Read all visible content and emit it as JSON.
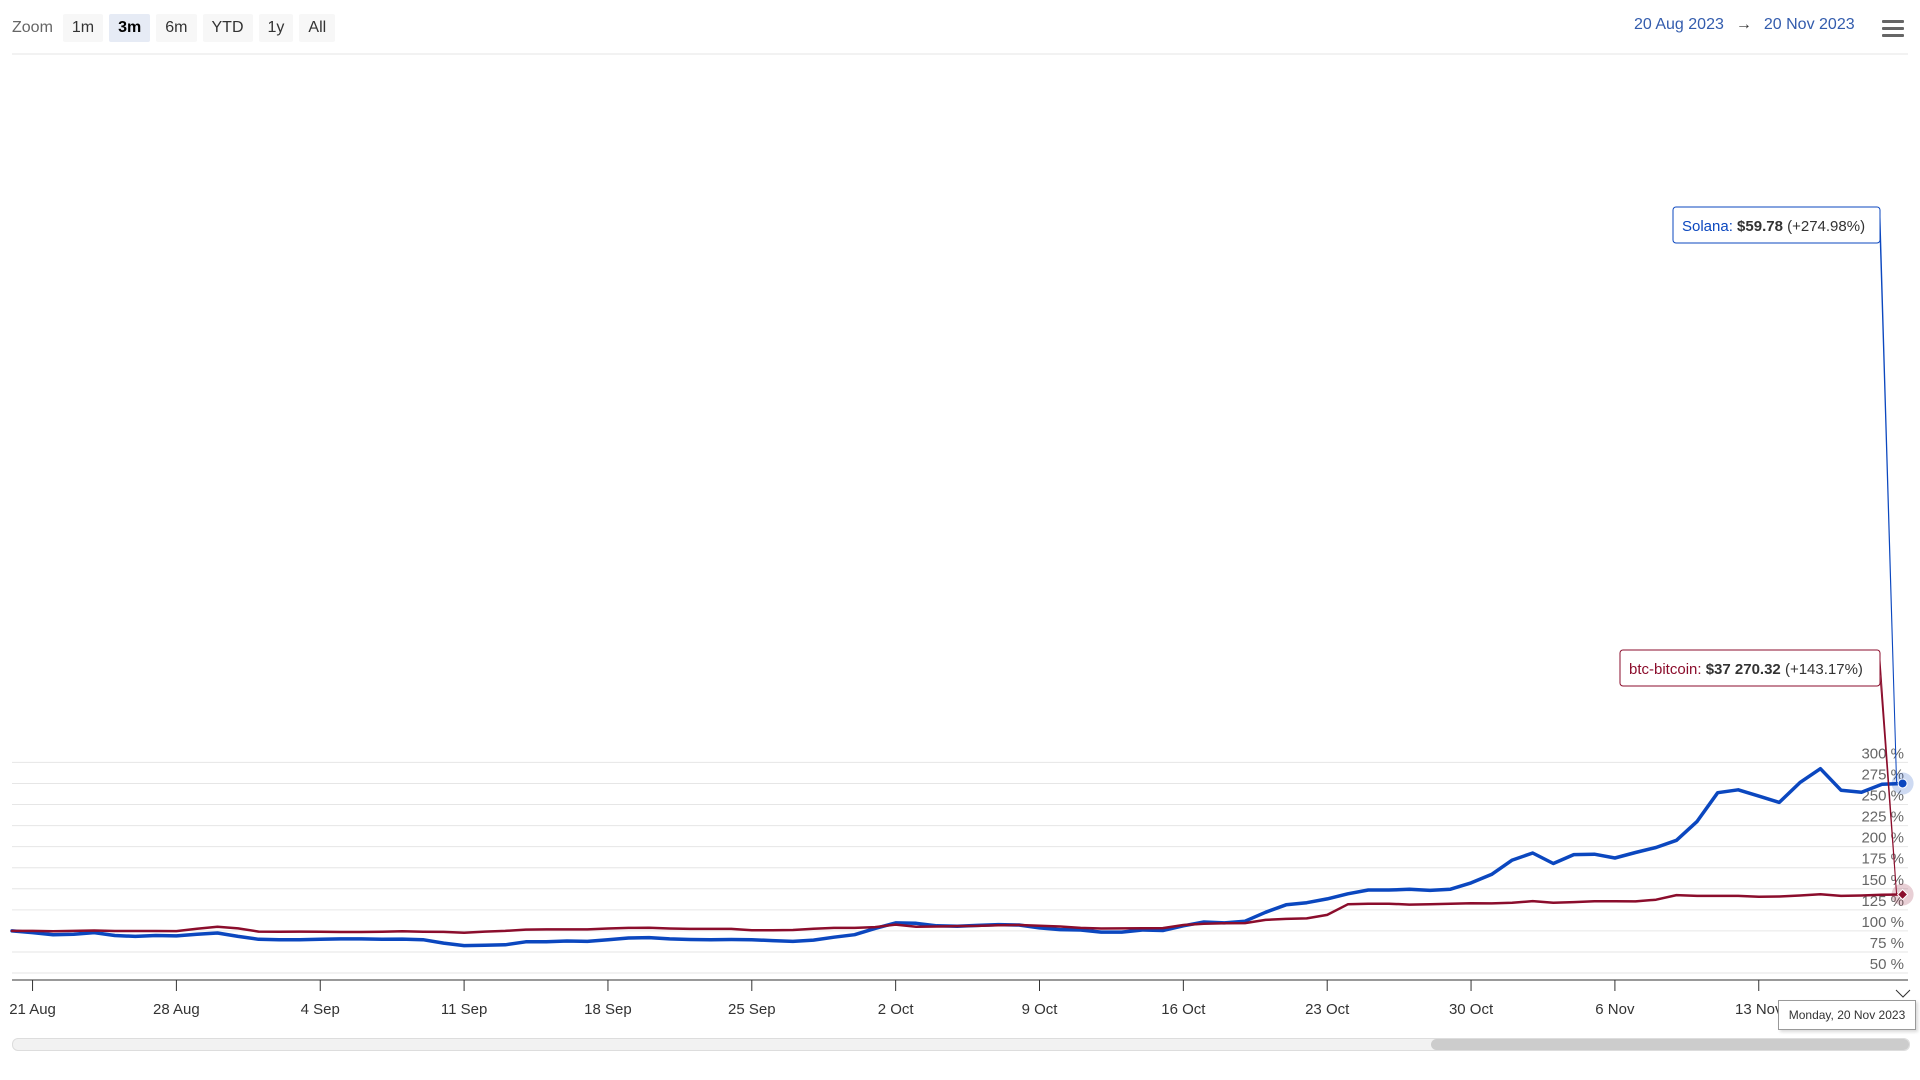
{
  "zoom": {
    "label": "Zoom",
    "buttons": [
      "1m",
      "3m",
      "6m",
      "YTD",
      "1y",
      "All"
    ],
    "selected": "3m"
  },
  "range": {
    "from": "20 Aug 2023",
    "arrow": "→",
    "to": "20 Nov 2023"
  },
  "icons": {
    "menu": "hamburger-menu-icon"
  },
  "tooltip_date": "Monday, 20 Nov 2023",
  "chart_data": {
    "type": "line",
    "x_start": "2023-08-20",
    "x_end": "2023-11-20",
    "x_ticks": [
      "21 Aug",
      "28 Aug",
      "4 Sep",
      "11 Sep",
      "18 Sep",
      "25 Sep",
      "2 Oct",
      "9 Oct",
      "16 Oct",
      "23 Oct",
      "30 Oct",
      "6 Nov",
      "13 Nov"
    ],
    "y_ticks": [
      "50 %",
      "75 %",
      "100 %",
      "125 %",
      "150 %",
      "175 %",
      "200 %",
      "225 %",
      "250 %",
      "275 %",
      "300 %"
    ],
    "y_unit": "%",
    "ylim": [
      50,
      325
    ],
    "grid": true,
    "series": [
      {
        "name": "Solana",
        "color": "#0b47bf",
        "tooltip": {
          "name": "Solana",
          "value": "$59.78",
          "change": "(+274.98%)"
        },
        "values": [
          [
            "2023-08-20",
            100
          ],
          [
            "2023-08-21",
            98
          ],
          [
            "2023-08-22",
            95.5
          ],
          [
            "2023-08-23",
            96
          ],
          [
            "2023-08-24",
            98
          ],
          [
            "2023-08-25",
            94.5
          ],
          [
            "2023-08-26",
            93.5
          ],
          [
            "2023-08-27",
            94.5
          ],
          [
            "2023-08-28",
            94
          ],
          [
            "2023-08-29",
            96
          ],
          [
            "2023-08-30",
            97.5
          ],
          [
            "2023-08-31",
            93.5
          ],
          [
            "2023-09-01",
            90
          ],
          [
            "2023-09-02",
            89.5
          ],
          [
            "2023-09-03",
            89.5
          ],
          [
            "2023-09-04",
            90
          ],
          [
            "2023-09-05",
            90.5
          ],
          [
            "2023-09-06",
            90.5
          ],
          [
            "2023-09-07",
            90
          ],
          [
            "2023-09-08",
            90.2
          ],
          [
            "2023-09-09",
            89.5
          ],
          [
            "2023-09-10",
            85.5
          ],
          [
            "2023-09-11",
            82.5
          ],
          [
            "2023-09-12",
            83
          ],
          [
            "2023-09-13",
            83.5
          ],
          [
            "2023-09-14",
            87
          ],
          [
            "2023-09-15",
            87.2
          ],
          [
            "2023-09-16",
            88
          ],
          [
            "2023-09-17",
            87.5
          ],
          [
            "2023-09-18",
            89.5
          ],
          [
            "2023-09-19",
            91.5
          ],
          [
            "2023-09-20",
            92
          ],
          [
            "2023-09-21",
            90.5
          ],
          [
            "2023-09-22",
            89.8
          ],
          [
            "2023-09-23",
            89.5
          ],
          [
            "2023-09-24",
            89.8
          ],
          [
            "2023-09-25",
            89.5
          ],
          [
            "2023-09-26",
            88.5
          ],
          [
            "2023-09-27",
            87.5
          ],
          [
            "2023-09-28",
            89
          ],
          [
            "2023-09-29",
            92.5
          ],
          [
            "2023-09-30",
            95.5
          ],
          [
            "2023-10-01",
            103
          ],
          [
            "2023-10-02",
            109.5
          ],
          [
            "2023-10-03",
            109
          ],
          [
            "2023-10-04",
            106
          ],
          [
            "2023-10-05",
            105.5
          ],
          [
            "2023-10-06",
            106.5
          ],
          [
            "2023-10-07",
            107.5
          ],
          [
            "2023-10-08",
            107
          ],
          [
            "2023-10-09",
            103.5
          ],
          [
            "2023-10-10",
            101.5
          ],
          [
            "2023-10-11",
            101
          ],
          [
            "2023-10-12",
            98.5
          ],
          [
            "2023-10-13",
            98.5
          ],
          [
            "2023-10-14",
            101
          ],
          [
            "2023-10-15",
            100.5
          ],
          [
            "2023-10-16",
            106
          ],
          [
            "2023-10-17",
            110.5
          ],
          [
            "2023-10-18",
            109.5
          ],
          [
            "2023-10-19",
            111.5
          ],
          [
            "2023-10-20",
            122
          ],
          [
            "2023-10-21",
            131
          ],
          [
            "2023-10-22",
            133.5
          ],
          [
            "2023-10-23",
            138
          ],
          [
            "2023-10-24",
            144
          ],
          [
            "2023-10-25",
            148.5
          ],
          [
            "2023-10-26",
            148.5
          ],
          [
            "2023-10-27",
            149.3
          ],
          [
            "2023-10-28",
            148
          ],
          [
            "2023-10-29",
            149.5
          ],
          [
            "2023-10-30",
            157
          ],
          [
            "2023-10-31",
            167
          ],
          [
            "2023-11-01",
            184
          ],
          [
            "2023-11-02",
            192.5
          ],
          [
            "2023-11-03",
            180
          ],
          [
            "2023-11-04",
            190.5
          ],
          [
            "2023-11-05",
            191
          ],
          [
            "2023-11-06",
            186.5
          ],
          [
            "2023-11-07",
            193
          ],
          [
            "2023-11-08",
            199
          ],
          [
            "2023-11-09",
            207.5
          ],
          [
            "2023-11-10",
            230
          ],
          [
            "2023-11-11",
            264
          ],
          [
            "2023-11-12",
            267.5
          ],
          [
            "2023-11-13",
            260
          ],
          [
            "2023-11-14",
            252.5
          ],
          [
            "2023-11-15",
            276
          ],
          [
            "2023-11-16",
            292.5
          ],
          [
            "2023-11-17",
            267
          ],
          [
            "2023-11-18",
            264.5
          ],
          [
            "2023-11-19",
            274
          ],
          [
            "2023-11-20",
            274.98
          ]
        ]
      },
      {
        "name": "btc-bitcoin",
        "color": "#8b0d2c",
        "tooltip": {
          "name": "btc-bitcoin",
          "value": "$37 270.32",
          "change": "(+143.17%)"
        },
        "values": [
          [
            "2023-08-20",
            100
          ],
          [
            "2023-08-21",
            100
          ],
          [
            "2023-08-22",
            99.5
          ],
          [
            "2023-08-23",
            100
          ],
          [
            "2023-08-24",
            100.5
          ],
          [
            "2023-08-25",
            99.8
          ],
          [
            "2023-08-26",
            99.8
          ],
          [
            "2023-08-27",
            99.8
          ],
          [
            "2023-08-28",
            99.7
          ],
          [
            "2023-08-29",
            102.5
          ],
          [
            "2023-08-30",
            105
          ],
          [
            "2023-08-31",
            103
          ],
          [
            "2023-09-01",
            99.2
          ],
          [
            "2023-09-02",
            99
          ],
          [
            "2023-09-03",
            99.2
          ],
          [
            "2023-09-04",
            99
          ],
          [
            "2023-09-05",
            98.7
          ],
          [
            "2023-09-06",
            98.7
          ],
          [
            "2023-09-07",
            99
          ],
          [
            "2023-09-08",
            99.5
          ],
          [
            "2023-09-09",
            99
          ],
          [
            "2023-09-10",
            98.8
          ],
          [
            "2023-09-11",
            97.7
          ],
          [
            "2023-09-12",
            99.2
          ],
          [
            "2023-09-13",
            100
          ],
          [
            "2023-09-14",
            101.5
          ],
          [
            "2023-09-15",
            101.7
          ],
          [
            "2023-09-16",
            101.8
          ],
          [
            "2023-09-17",
            101.7
          ],
          [
            "2023-09-18",
            102.8
          ],
          [
            "2023-09-19",
            103.5
          ],
          [
            "2023-09-20",
            103.8
          ],
          [
            "2023-09-21",
            102.8
          ],
          [
            "2023-09-22",
            102.3
          ],
          [
            "2023-09-23",
            102.3
          ],
          [
            "2023-09-24",
            102.3
          ],
          [
            "2023-09-25",
            100.8
          ],
          [
            "2023-09-26",
            100.8
          ],
          [
            "2023-09-27",
            101
          ],
          [
            "2023-09-28",
            102.5
          ],
          [
            "2023-09-29",
            103.5
          ],
          [
            "2023-09-30",
            103.5
          ],
          [
            "2023-10-01",
            104.5
          ],
          [
            "2023-10-02",
            107.5
          ],
          [
            "2023-10-03",
            105
          ],
          [
            "2023-10-04",
            105.2
          ],
          [
            "2023-10-05",
            105.7
          ],
          [
            "2023-10-06",
            105.9
          ],
          [
            "2023-10-07",
            106.8
          ],
          [
            "2023-10-08",
            107
          ],
          [
            "2023-10-09",
            106
          ],
          [
            "2023-10-10",
            105.2
          ],
          [
            "2023-10-11",
            103.5
          ],
          [
            "2023-10-12",
            102.8
          ],
          [
            "2023-10-13",
            103
          ],
          [
            "2023-10-14",
            103.2
          ],
          [
            "2023-10-15",
            103.3
          ],
          [
            "2023-10-16",
            107
          ],
          [
            "2023-10-17",
            108.5
          ],
          [
            "2023-10-18",
            109
          ],
          [
            "2023-10-19",
            109.2
          ],
          [
            "2023-10-20",
            113
          ],
          [
            "2023-10-21",
            114.2
          ],
          [
            "2023-10-22",
            114.8
          ],
          [
            "2023-10-23",
            119
          ],
          [
            "2023-10-24",
            131.5
          ],
          [
            "2023-10-25",
            132.3
          ],
          [
            "2023-10-26",
            132.3
          ],
          [
            "2023-10-27",
            131.2
          ],
          [
            "2023-10-28",
            131.6
          ],
          [
            "2023-10-29",
            132.3
          ],
          [
            "2023-10-30",
            132.8
          ],
          [
            "2023-10-31",
            132.6
          ],
          [
            "2023-11-01",
            133.3
          ],
          [
            "2023-11-02",
            135.3
          ],
          [
            "2023-11-03",
            133.3
          ],
          [
            "2023-11-04",
            134.2
          ],
          [
            "2023-11-05",
            135.2
          ],
          [
            "2023-11-06",
            135.2
          ],
          [
            "2023-11-07",
            135
          ],
          [
            "2023-11-08",
            137
          ],
          [
            "2023-11-09",
            142.5
          ],
          [
            "2023-11-10",
            141.5
          ],
          [
            "2023-11-11",
            141.5
          ],
          [
            "2023-11-12",
            141.5
          ],
          [
            "2023-11-13",
            140.5
          ],
          [
            "2023-11-14",
            140.8
          ],
          [
            "2023-11-15",
            142
          ],
          [
            "2023-11-16",
            143.5
          ],
          [
            "2023-11-17",
            141.5
          ],
          [
            "2023-11-18",
            142
          ],
          [
            "2023-11-19",
            142.8
          ],
          [
            "2023-11-20",
            143.17
          ]
        ]
      }
    ]
  }
}
